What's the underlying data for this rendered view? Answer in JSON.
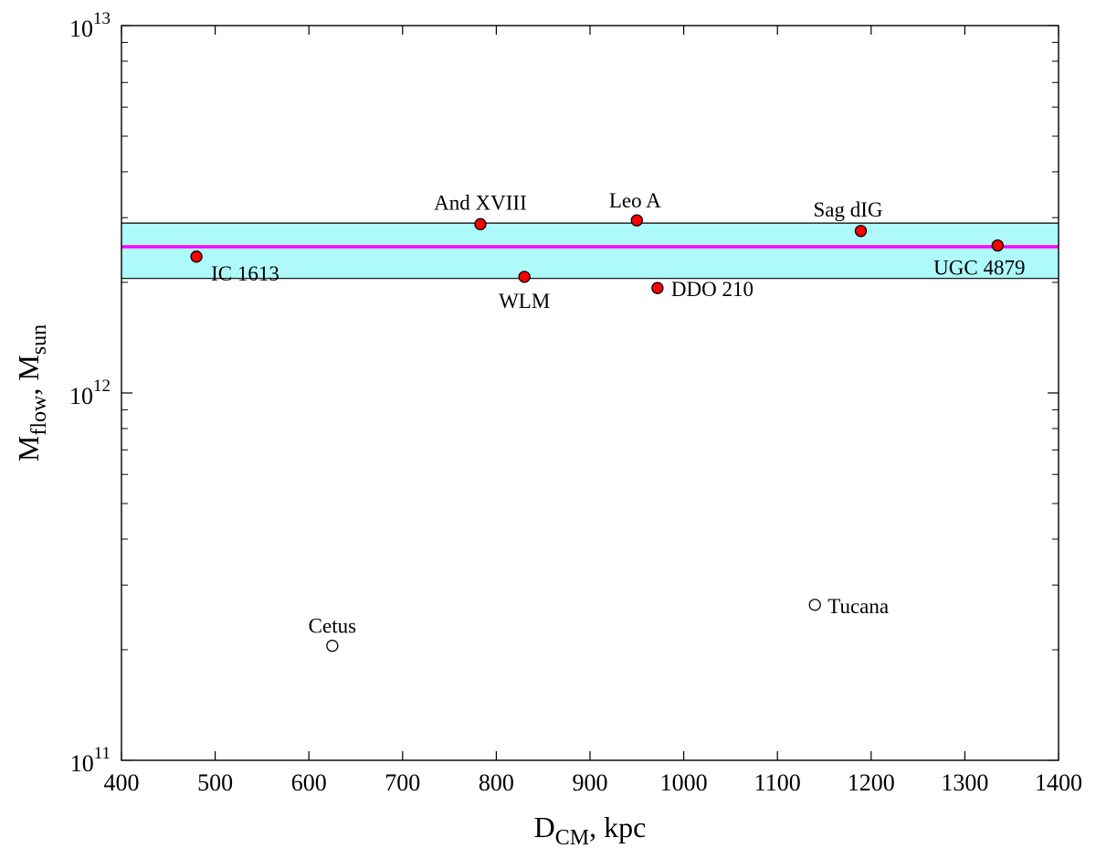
{
  "chart_data": {
    "type": "scatter",
    "xlabel": {
      "main": "D",
      "sub": "CM",
      "rest": ", kpc"
    },
    "ylabel": {
      "main": "M",
      "sub1": "flow",
      "mid": ", M",
      "sub2": "sun"
    },
    "xlim": [
      400,
      1400
    ],
    "ylim": [
      100000000000.0,
      10000000000000.0
    ],
    "yscale": "log",
    "grid": false,
    "x_ticks": [
      "400",
      "500",
      "600",
      "700",
      "800",
      "900",
      "1000",
      "1100",
      "1200",
      "1300",
      "1400"
    ],
    "y_ticks": [
      {
        "base": "10",
        "exp": "11"
      },
      {
        "base": "10",
        "exp": "12"
      },
      {
        "base": "10",
        "exp": "13"
      }
    ],
    "band": {
      "low": 2050000000000.0,
      "high": 2900000000000.0,
      "color": "#aefafa"
    },
    "mean_line": {
      "value": 2500000000000.0,
      "color": "#ff00ff"
    },
    "points": [
      {
        "name": "IC 1613",
        "x": 480,
        "y": 2350000000000.0,
        "filled": true
      },
      {
        "name": "And XVIII",
        "x": 783,
        "y": 2880000000000.0,
        "filled": true
      },
      {
        "name": "WLM",
        "x": 830,
        "y": 2070000000000.0,
        "filled": true
      },
      {
        "name": "Leo A",
        "x": 950,
        "y": 2950000000000.0,
        "filled": true
      },
      {
        "name": "DDO 210",
        "x": 972,
        "y": 1930000000000.0,
        "filled": true
      },
      {
        "name": "Sag dIG",
        "x": 1189,
        "y": 2760000000000.0,
        "filled": true
      },
      {
        "name": "UGC 4879",
        "x": 1335,
        "y": 2520000000000.0,
        "filled": true
      },
      {
        "name": "Cetus",
        "x": 625,
        "y": 205000000000.0,
        "filled": false
      },
      {
        "name": "Tucana",
        "x": 1140,
        "y": 265000000000.0,
        "filled": false
      }
    ],
    "colors": {
      "filled_marker": "#ff0000",
      "open_marker": "#ffffff",
      "marker_edge": "#000000"
    }
  }
}
